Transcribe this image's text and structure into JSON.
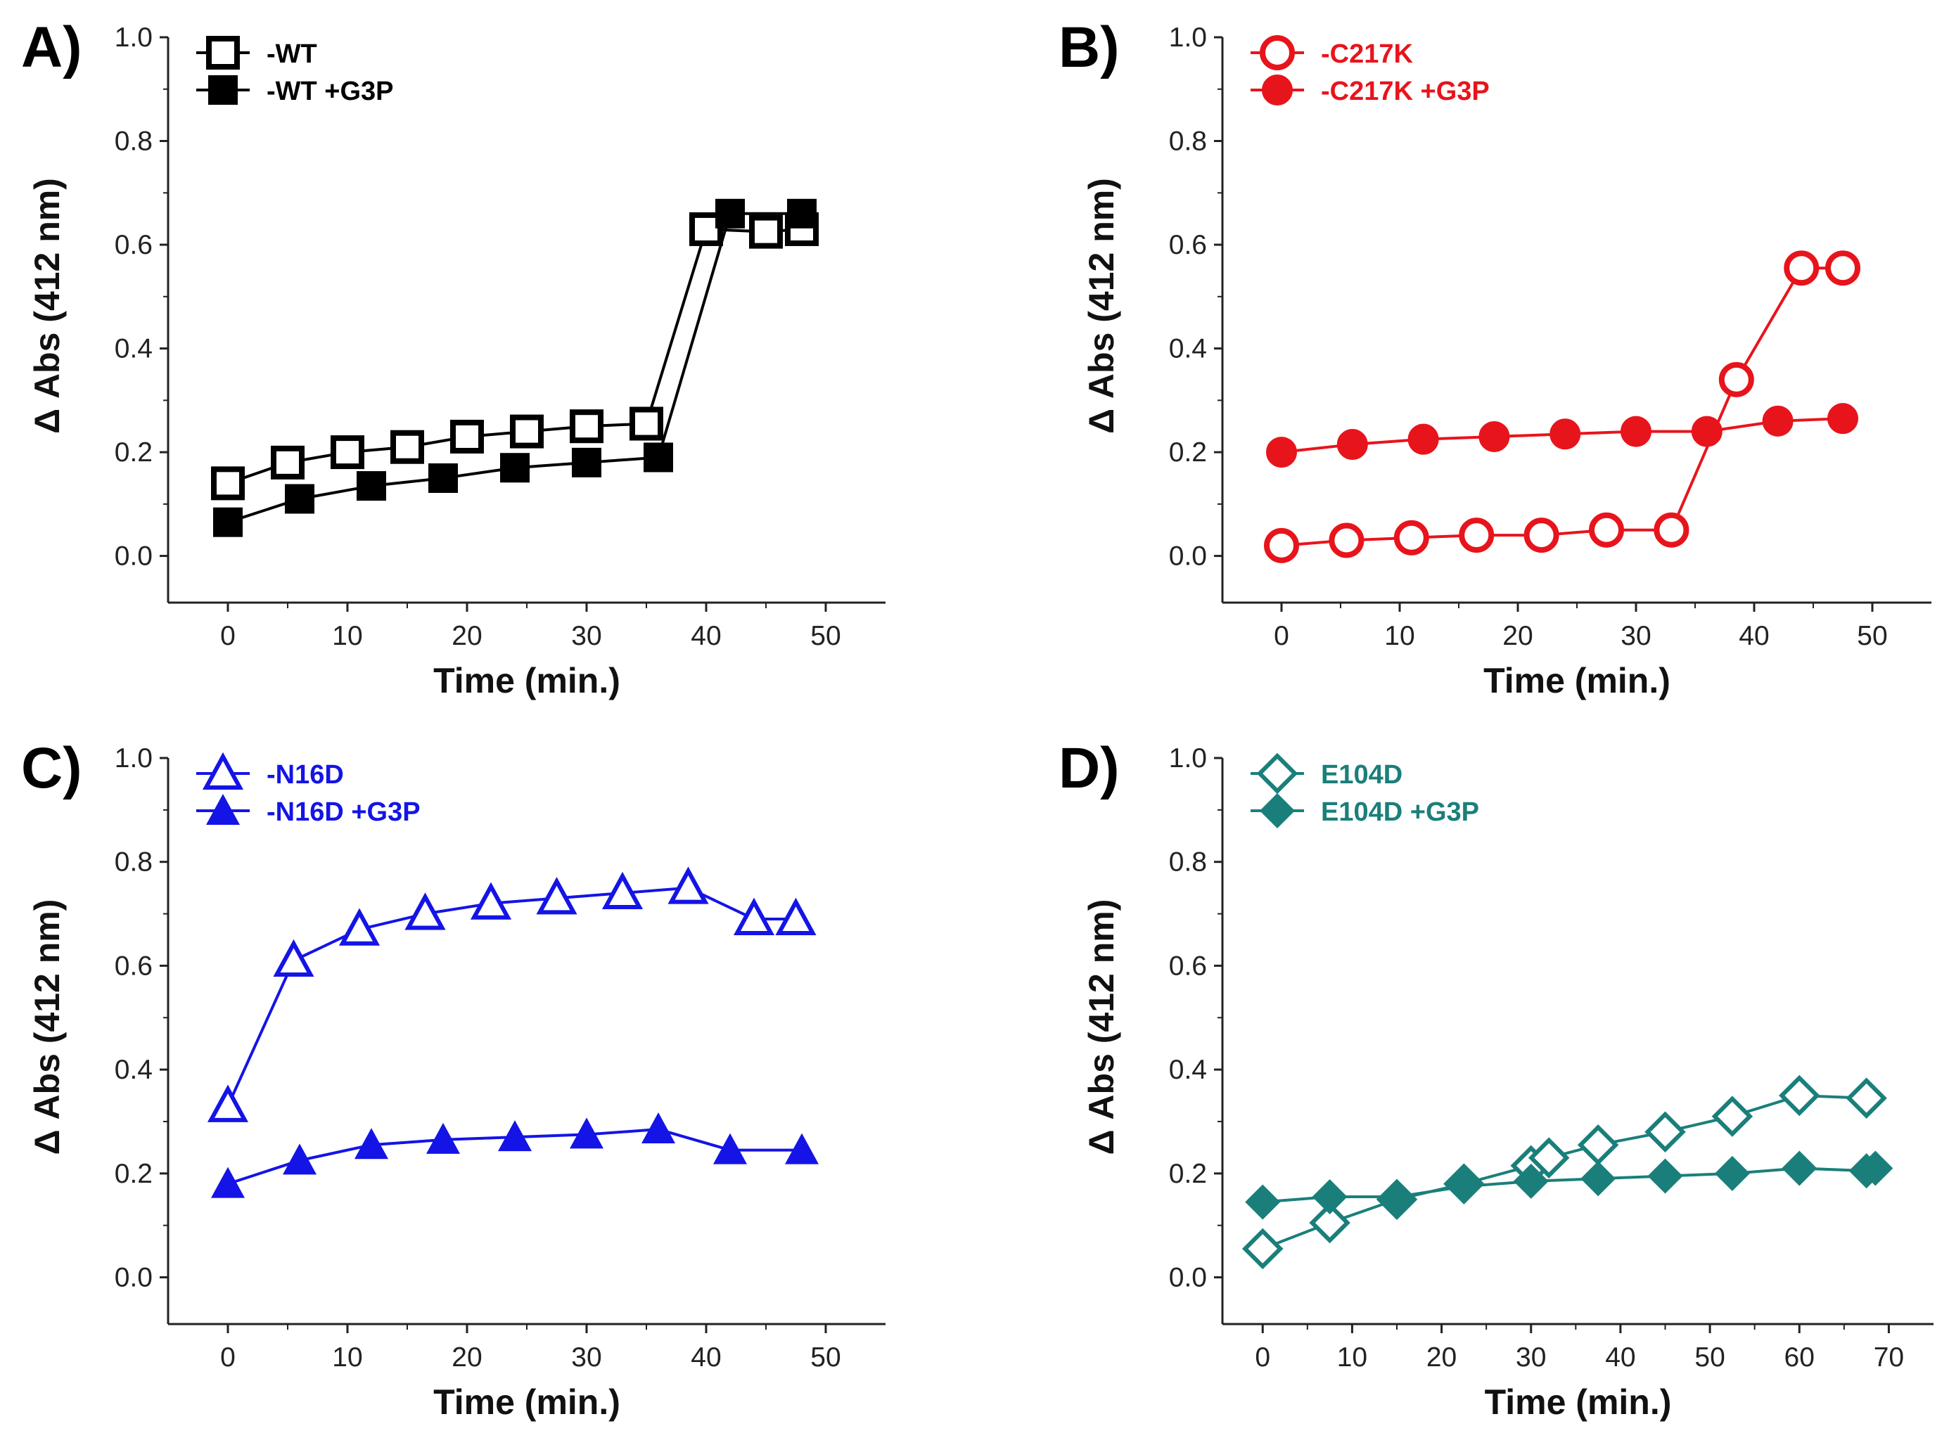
{
  "chart_data": [
    {
      "panel": "A)",
      "type": "line",
      "xlabel": "Time (min.)",
      "ylabel": "Δ Abs (412 nm)",
      "xlim": [
        -5,
        55
      ],
      "ylim": [
        -0.09,
        1.0
      ],
      "xticks": [
        0,
        10,
        20,
        30,
        40,
        50
      ],
      "yticks": [
        "0.0",
        "0.2",
        "0.4",
        "0.6",
        "0.8",
        "1.0"
      ],
      "color": "#000000",
      "legend": "top-left",
      "grid": false,
      "series": [
        {
          "name": "-WT",
          "marker": "square-open",
          "x": [
            0,
            5,
            10,
            15,
            20,
            25,
            30,
            35,
            40,
            45,
            48
          ],
          "y": [
            0.14,
            0.18,
            0.2,
            0.21,
            0.23,
            0.24,
            0.25,
            0.255,
            0.63,
            0.625,
            0.63
          ]
        },
        {
          "name": "-WT +G3P",
          "marker": "square-filled",
          "x": [
            0,
            6,
            12,
            18,
            24,
            30,
            36,
            42,
            48
          ],
          "y": [
            0.065,
            0.11,
            0.135,
            0.15,
            0.17,
            0.18,
            0.19,
            0.66,
            0.66
          ]
        }
      ]
    },
    {
      "panel": "B)",
      "type": "line",
      "xlabel": "Time (min.)",
      "ylabel": "Δ Abs (412 nm)",
      "xlim": [
        -5,
        55
      ],
      "ylim": [
        -0.09,
        1.0
      ],
      "xticks": [
        0,
        10,
        20,
        30,
        40,
        50
      ],
      "yticks": [
        "0.0",
        "0.2",
        "0.4",
        "0.6",
        "0.8",
        "1.0"
      ],
      "color": "#e8141c",
      "legend": "top-left",
      "grid": false,
      "series": [
        {
          "name": "-C217K",
          "marker": "circle-open",
          "x": [
            0,
            5.5,
            11,
            16.5,
            22,
            27.5,
            33,
            38.5,
            44,
            47.5
          ],
          "y": [
            0.02,
            0.03,
            0.035,
            0.04,
            0.04,
            0.05,
            0.05,
            0.34,
            0.555,
            0.555
          ]
        },
        {
          "name": "-C217K +G3P",
          "marker": "circle-filled",
          "x": [
            0,
            6,
            12,
            18,
            24,
            30,
            36,
            42,
            47.5
          ],
          "y": [
            0.2,
            0.215,
            0.225,
            0.23,
            0.235,
            0.24,
            0.24,
            0.26,
            0.265
          ]
        }
      ]
    },
    {
      "panel": "C)",
      "type": "line",
      "xlabel": "Time (min.)",
      "ylabel": "Δ Abs (412 nm)",
      "xlim": [
        -5,
        55
      ],
      "ylim": [
        -0.09,
        1.0
      ],
      "xticks": [
        0,
        10,
        20,
        30,
        40,
        50
      ],
      "yticks": [
        "0.0",
        "0.2",
        "0.4",
        "0.6",
        "0.8",
        "1.0"
      ],
      "color": "#1414e6",
      "legend": "top-left",
      "grid": false,
      "series": [
        {
          "name": "-N16D",
          "marker": "triangle-open",
          "x": [
            0,
            5.5,
            11,
            16.5,
            22,
            27.5,
            33,
            38.5,
            44,
            47.5
          ],
          "y": [
            0.33,
            0.61,
            0.67,
            0.7,
            0.72,
            0.73,
            0.74,
            0.75,
            0.69,
            0.69
          ]
        },
        {
          "name": "-N16D +G3P",
          "marker": "triangle-filled",
          "x": [
            0,
            6,
            12,
            18,
            24,
            30,
            36,
            42,
            48
          ],
          "y": [
            0.18,
            0.225,
            0.255,
            0.265,
            0.27,
            0.275,
            0.285,
            0.245,
            0.245
          ]
        }
      ]
    },
    {
      "panel": "D)",
      "type": "line",
      "xlabel": "Time (min.)",
      "ylabel": "Δ Abs (412 nm)",
      "xlim": [
        -4.5,
        75
      ],
      "ylim": [
        -0.09,
        1.0
      ],
      "xticks": [
        0,
        10,
        20,
        30,
        40,
        50,
        60,
        70
      ],
      "yticks": [
        "0.0",
        "0.2",
        "0.4",
        "0.6",
        "0.8",
        "1.0"
      ],
      "color": "#1a7f7a",
      "legend": "top-left",
      "grid": false,
      "series": [
        {
          "name": "E104D",
          "marker": "diamond-open",
          "x": [
            0,
            7.5,
            15,
            22.5,
            30,
            32,
            37.5,
            45,
            52.5,
            60,
            67.5
          ],
          "y": [
            0.055,
            0.105,
            0.15,
            0.18,
            0.215,
            0.23,
            0.255,
            0.28,
            0.31,
            0.35,
            0.345
          ]
        },
        {
          "name": "E104D +G3P",
          "marker": "diamond-filled",
          "x": [
            0,
            7.5,
            15,
            22.5,
            30,
            37.5,
            45,
            52.5,
            60,
            67.5,
            68.5
          ],
          "y": [
            0.145,
            0.155,
            0.155,
            0.175,
            0.185,
            0.19,
            0.195,
            0.2,
            0.21,
            0.205,
            0.21
          ]
        }
      ]
    }
  ]
}
